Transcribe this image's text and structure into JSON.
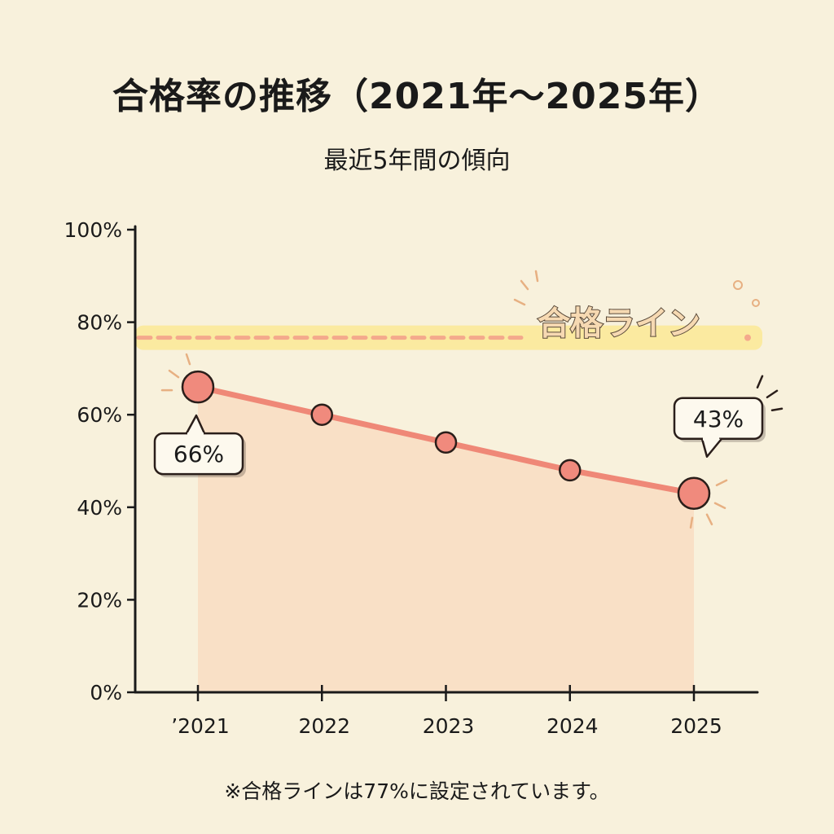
{
  "title": "合格率の推移（2021年〜2025年）",
  "subtitle": "最近5年間の傾向",
  "footnote": "※合格ラインは77%に設定されています。",
  "colors": {
    "background": "#f8f1dc",
    "line": "#ef8877",
    "marker_fill": "#f08a7d",
    "area_fill": "#f9d9bf",
    "threshold_band": "#fbeaa0",
    "threshold_dash": "#f4a98c",
    "axis": "#1a1a1a"
  },
  "chart_data": {
    "type": "line",
    "title": "合格率の推移（2021年〜2025年）",
    "subtitle": "最近5年間の傾向",
    "xlabel": "",
    "ylabel": "",
    "categories": [
      "’2021",
      "2022",
      "2023",
      "2024",
      "2025"
    ],
    "series": [
      {
        "name": "合格率",
        "values": [
          66,
          60,
          54,
          48,
          43
        ]
      }
    ],
    "ylim": [
      0,
      100
    ],
    "yticks": [
      0,
      20,
      40,
      60,
      80,
      100
    ],
    "ytick_labels": [
      "0%",
      "20%",
      "40%",
      "60%",
      "80%",
      "100%"
    ],
    "threshold": {
      "label": "合格ライン",
      "value": 77
    },
    "callouts": [
      {
        "index": 0,
        "text": "66%"
      },
      {
        "index": 4,
        "text": "43%"
      }
    ],
    "grid": false,
    "area_fill": true
  }
}
